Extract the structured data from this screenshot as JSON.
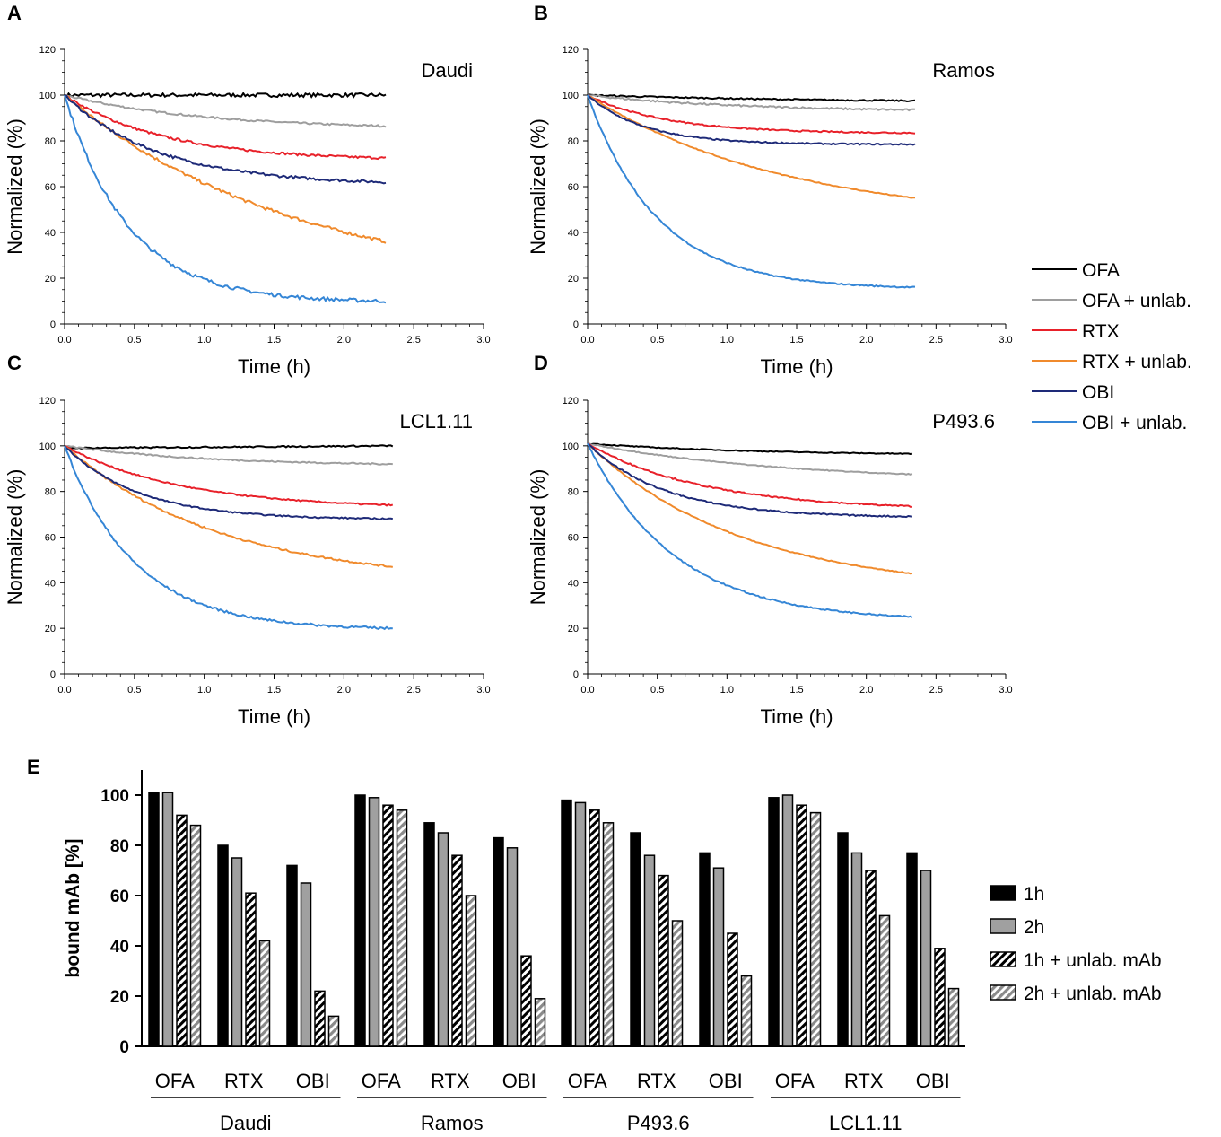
{
  "colors": {
    "OFA": "#000000",
    "OFA + unlab.": "#9e9e9e",
    "RTX": "#e8212a",
    "RTX + unlab.": "#f08a2c",
    "OBI": "#1e2a78",
    "OBI + unlab.": "#3586d6",
    "bar_black": "#000000",
    "bar_gray": "#a0a0a0"
  },
  "line_legend": [
    "OFA",
    "OFA + unlab.",
    "RTX",
    "RTX + unlab.",
    "OBI",
    "OBI + unlab."
  ],
  "bar_legend": [
    "1h",
    "2h",
    "1h + unlab. mAb",
    "2h + unlab. mAb"
  ],
  "chart_data": [
    {
      "panel": "A",
      "type": "line",
      "title": "Daudi",
      "xlabel": "Time (h)",
      "ylabel": "Normalized (%)",
      "xlim": [
        0,
        3.0
      ],
      "ylim": [
        0,
        120
      ],
      "xticks": [
        "0.0",
        "0.5",
        "1.0",
        "1.5",
        "2.0",
        "2.5",
        "3.0"
      ],
      "yticks": [
        "0",
        "20",
        "40",
        "60",
        "80",
        "100",
        "120"
      ],
      "x_end": 2.3,
      "series": [
        {
          "name": "OFA",
          "final": 100,
          "k": 1,
          "start": 100,
          "noise": 0.8
        },
        {
          "name": "OFA + unlab.",
          "final": 86.5,
          "k": 1.0,
          "start": 100,
          "noise": 0.4
        },
        {
          "name": "RTX",
          "final": 72.5,
          "k": 1.4,
          "start": 100,
          "noise": 0.5
        },
        {
          "name": "RTX + unlab.",
          "final": 36,
          "k": 0.6,
          "start": 100,
          "noise": 0.7
        },
        {
          "name": "OBI",
          "final": 62,
          "k": 1.5,
          "start": 100,
          "noise": 0.6
        },
        {
          "name": "OBI + unlab.",
          "final": 10,
          "k": 2.2,
          "start": 100,
          "noise": 0.8
        }
      ]
    },
    {
      "panel": "B",
      "type": "line",
      "title": "Ramos",
      "xlabel": "Time (h)",
      "ylabel": "Normalized (%)",
      "xlim": [
        0,
        3.0
      ],
      "ylim": [
        0,
        120
      ],
      "xticks": [
        "0.0",
        "0.5",
        "1.0",
        "1.5",
        "2.0",
        "2.5",
        "3.0"
      ],
      "yticks": [
        "0",
        "20",
        "40",
        "60",
        "80",
        "100",
        "120"
      ],
      "x_end": 2.35,
      "series": [
        {
          "name": "OFA",
          "final": 97.5,
          "k": 0.5,
          "start": 100,
          "noise": 0.3
        },
        {
          "name": "OFA + unlab.",
          "final": 93.5,
          "k": 0.9,
          "start": 100,
          "noise": 0.4
        },
        {
          "name": "RTX",
          "final": 83.5,
          "k": 1.8,
          "start": 100,
          "noise": 0.3
        },
        {
          "name": "RTX + unlab.",
          "final": 55,
          "k": 0.7,
          "start": 100,
          "noise": 0.2
        },
        {
          "name": "OBI",
          "final": 78.5,
          "k": 2.5,
          "start": 100,
          "noise": 0.3
        },
        {
          "name": "OBI + unlab.",
          "final": 16,
          "k": 2.0,
          "start": 100,
          "noise": 0.3
        }
      ]
    },
    {
      "panel": "C",
      "type": "line",
      "title": "LCL1.11",
      "xlabel": "Time (h)",
      "ylabel": "Normalized (%)",
      "xlim": [
        0,
        3.0
      ],
      "ylim": [
        0,
        120
      ],
      "xticks": [
        "0.0",
        "0.5",
        "1.0",
        "1.5",
        "2.0",
        "2.5",
        "3.0"
      ],
      "yticks": [
        "0",
        "20",
        "40",
        "60",
        "80",
        "100",
        "120"
      ],
      "x_end": 2.35,
      "series": [
        {
          "name": "OFA",
          "final": 100,
          "k": 1,
          "start": 99,
          "noise": 0.3
        },
        {
          "name": "OFA + unlab.",
          "final": 92,
          "k": 1.0,
          "start": 100,
          "noise": 0.3
        },
        {
          "name": "RTX",
          "final": 74,
          "k": 1.2,
          "start": 100,
          "noise": 0.3
        },
        {
          "name": "RTX + unlab.",
          "final": 47,
          "k": 0.9,
          "start": 100,
          "noise": 0.4
        },
        {
          "name": "OBI",
          "final": 68,
          "k": 1.9,
          "start": 100,
          "noise": 0.3
        },
        {
          "name": "OBI + unlab.",
          "final": 20,
          "k": 2.0,
          "start": 100,
          "noise": 0.5
        }
      ]
    },
    {
      "panel": "D",
      "type": "line",
      "title": "P493.6",
      "xlabel": "Time (h)",
      "ylabel": "Normalized (%)",
      "xlim": [
        0,
        3.0
      ],
      "ylim": [
        0,
        120
      ],
      "xticks": [
        "0.0",
        "0.5",
        "1.0",
        "1.5",
        "2.0",
        "2.5",
        "3.0"
      ],
      "yticks": [
        "0",
        "20",
        "40",
        "60",
        "80",
        "100",
        "120"
      ],
      "x_end": 2.33,
      "series": [
        {
          "name": "OFA",
          "final": 96.5,
          "k": 0.8,
          "start": 101,
          "noise": 0.2
        },
        {
          "name": "OFA + unlab.",
          "final": 87.5,
          "k": 0.7,
          "start": 101,
          "noise": 0.2
        },
        {
          "name": "RTX",
          "final": 73.5,
          "k": 1.2,
          "start": 101,
          "noise": 0.3
        },
        {
          "name": "RTX + unlab.",
          "final": 44,
          "k": 0.9,
          "start": 101,
          "noise": 0.2
        },
        {
          "name": "OBI",
          "final": 69,
          "k": 1.8,
          "start": 101,
          "noise": 0.3
        },
        {
          "name": "OBI + unlab.",
          "final": 25,
          "k": 1.6,
          "start": 101,
          "noise": 0.3
        }
      ]
    },
    {
      "panel": "E",
      "type": "bar",
      "ylabel": "bound mAb [%]",
      "ylim": [
        0,
        110
      ],
      "yticks": [
        "0",
        "20",
        "40",
        "60",
        "80",
        "100"
      ],
      "series_names": [
        "1h",
        "2h",
        "1h + unlab. mAb",
        "2h + unlab. mAb"
      ],
      "groups": [
        {
          "cell": "Daudi",
          "antibodies": [
            {
              "label": "OFA",
              "values": [
                101,
                101,
                92,
                88
              ]
            },
            {
              "label": "RTX",
              "values": [
                80,
                75,
                61,
                42
              ]
            },
            {
              "label": "OBI",
              "values": [
                72,
                65,
                22,
                12
              ]
            }
          ]
        },
        {
          "cell": "Ramos",
          "antibodies": [
            {
              "label": "OFA",
              "values": [
                100,
                99,
                96,
                94
              ]
            },
            {
              "label": "RTX",
              "values": [
                89,
                85,
                76,
                60
              ]
            },
            {
              "label": "OBI",
              "values": [
                83,
                79,
                36,
                19
              ]
            }
          ]
        },
        {
          "cell": "P493.6",
          "antibodies": [
            {
              "label": "OFA",
              "values": [
                98,
                97,
                94,
                89
              ]
            },
            {
              "label": "RTX",
              "values": [
                85,
                76,
                68,
                50
              ]
            },
            {
              "label": "OBI",
              "values": [
                77,
                71,
                45,
                28
              ]
            }
          ]
        },
        {
          "cell": "LCL1.11",
          "antibodies": [
            {
              "label": "OFA",
              "values": [
                99,
                100,
                96,
                93
              ]
            },
            {
              "label": "RTX",
              "values": [
                85,
                77,
                70,
                52
              ]
            },
            {
              "label": "OBI",
              "values": [
                77,
                70,
                39,
                23
              ]
            }
          ]
        }
      ]
    }
  ]
}
